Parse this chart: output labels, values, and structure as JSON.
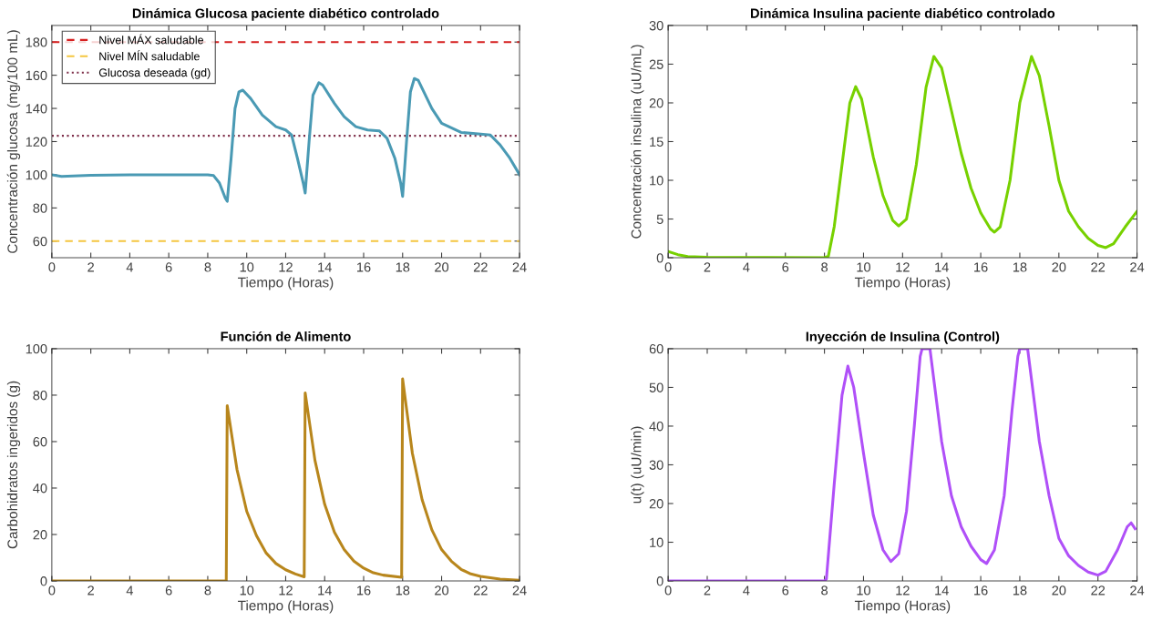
{
  "chart_data": [
    {
      "type": "line",
      "title": "Dinámica Glucosa paciente diabético controlado",
      "xlabel": "Tiempo (Horas)",
      "ylabel": "Concentración glucosa (mg/100 mL)",
      "xlim": [
        0,
        24
      ],
      "xticks": [
        0,
        2,
        4,
        6,
        8,
        10,
        12,
        14,
        16,
        18,
        20,
        22,
        24
      ],
      "ylim": [
        50,
        190
      ],
      "yticks": [
        60,
        80,
        100,
        120,
        140,
        160,
        180
      ],
      "grid": false,
      "legend": "top left",
      "x": [
        0,
        0.5,
        2,
        4,
        8,
        8.3,
        8.6,
        8.9,
        9.0,
        9.2,
        9.4,
        9.6,
        9.8,
        10.2,
        10.8,
        11.5,
        12,
        12.3,
        12.6,
        12.9,
        13.0,
        13.2,
        13.4,
        13.7,
        13.9,
        14.5,
        15,
        15.6,
        16.2,
        16.8,
        17.2,
        17.6,
        17.9,
        18.0,
        18.2,
        18.4,
        18.6,
        18.8,
        19.5,
        20,
        21,
        22,
        22.5,
        23,
        23.5,
        24
      ],
      "series": [
        {
          "color": "#4a9ab4",
          "values": [
            100,
            99,
            99.7,
            100,
            100,
            99.5,
            95,
            86,
            84,
            110,
            140,
            150,
            151,
            146,
            136,
            129,
            127,
            124,
            110,
            95,
            89,
            120,
            148,
            155.5,
            154,
            143,
            135,
            129,
            127,
            126.5,
            122,
            110,
            95,
            87,
            120,
            150,
            158,
            157,
            140,
            131,
            125.5,
            124.5,
            124,
            118,
            110,
            100
          ]
        }
      ],
      "ref_lines": [
        {
          "axis": "y",
          "value": 180,
          "label": "Nivel MÁX saludable",
          "color": "#d62020",
          "line_style": "dashed"
        },
        {
          "axis": "y",
          "value": 60,
          "label": "Nivel MÍN saludable",
          "color": "#f5c640",
          "line_style": "dashed"
        },
        {
          "axis": "y",
          "value": 123.5,
          "label": "Glucosa deseada (gd)",
          "color": "#7e2f4a",
          "line_style": "dotted"
        }
      ]
    },
    {
      "type": "line",
      "title": "Dinámica Insulina paciente diabético controlado",
      "xlabel": "Tiempo (Horas)",
      "ylabel": "Concentración insulina (uU/mL)",
      "xlim": [
        0,
        24
      ],
      "xticks": [
        0,
        2,
        4,
        6,
        8,
        10,
        12,
        14,
        16,
        18,
        20,
        22,
        24
      ],
      "ylim": [
        0,
        30
      ],
      "yticks": [
        0,
        5,
        10,
        15,
        20,
        25,
        30
      ],
      "grid": false,
      "x": [
        0,
        0.5,
        1,
        2,
        8,
        8.2,
        8.5,
        9,
        9.3,
        9.6,
        9.9,
        10.5,
        11,
        11.5,
        11.8,
        12.2,
        12.7,
        13.2,
        13.6,
        14,
        14.5,
        15,
        15.5,
        16,
        16.5,
        16.7,
        17,
        17.5,
        18,
        18.6,
        19,
        19.5,
        20,
        20.5,
        21,
        21.5,
        22,
        22.4,
        22.8,
        23.4,
        24
      ],
      "series": [
        {
          "color": "#77d100",
          "values": [
            0.8,
            0.4,
            0.15,
            0.05,
            0,
            0.2,
            4,
            14,
            20,
            22.1,
            20.5,
            13,
            8,
            4.8,
            4.1,
            5,
            12,
            22,
            26,
            24.5,
            19,
            13.5,
            9,
            5.8,
            3.7,
            3.3,
            4,
            10,
            20,
            26,
            23.5,
            17,
            10,
            6,
            4,
            2.5,
            1.6,
            1.3,
            1.8,
            4,
            6
          ]
        }
      ]
    },
    {
      "type": "line",
      "title": "Función de Alimento",
      "xlabel": "Tiempo (Horas)",
      "ylabel": "Carbohidratos ingeridos (g)",
      "xlim": [
        0,
        24
      ],
      "xticks": [
        0,
        2,
        4,
        6,
        8,
        10,
        12,
        14,
        16,
        18,
        20,
        22,
        24
      ],
      "ylim": [
        0,
        100
      ],
      "yticks": [
        0,
        20,
        40,
        60,
        80,
        100
      ],
      "grid": false,
      "x": [
        0,
        8.95,
        9.0,
        9.5,
        10,
        10.5,
        11,
        11.5,
        12,
        12.5,
        12.95,
        13.0,
        13.5,
        14,
        14.5,
        15,
        15.5,
        16,
        16.5,
        17,
        17.95,
        18.0,
        18.5,
        19,
        19.5,
        20,
        20.5,
        21,
        21.5,
        22,
        23,
        24
      ],
      "series": [
        {
          "color": "#b8861c",
          "values": [
            0,
            0,
            75.5,
            48,
            30,
            19.5,
            12,
            7.5,
            4.8,
            3,
            1.8,
            81,
            52,
            33,
            21,
            13.5,
            8.5,
            5.5,
            3.5,
            2.5,
            1.6,
            87,
            55,
            35,
            22,
            13.5,
            8.5,
            5,
            3,
            2,
            0.8,
            0.3
          ]
        }
      ]
    },
    {
      "type": "line",
      "title": "Inyección de Insulina (Control)",
      "xlabel": "Tiempo (Horas)",
      "ylabel": "u(t) (uU/min)",
      "xlim": [
        0,
        24
      ],
      "xticks": [
        0,
        2,
        4,
        6,
        8,
        10,
        12,
        14,
        16,
        18,
        20,
        22,
        24
      ],
      "ylim": [
        0,
        60
      ],
      "yticks": [
        0,
        10,
        20,
        30,
        40,
        50,
        60
      ],
      "grid": false,
      "x": [
        0,
        8,
        8.1,
        8.5,
        8.9,
        9.2,
        9.5,
        10,
        10.5,
        11,
        11.4,
        11.8,
        12.2,
        12.6,
        12.9,
        13.0,
        13.4,
        13.6,
        14,
        14.5,
        15,
        15.5,
        16,
        16.3,
        16.7,
        17.2,
        17.6,
        17.9,
        18.0,
        18.4,
        18.6,
        19,
        19.5,
        20,
        20.5,
        21,
        21.5,
        22,
        22.4,
        23,
        23.5,
        23.7,
        23.9
      ],
      "series": [
        {
          "color": "#b050f8",
          "values": [
            0,
            0,
            0.5,
            25,
            48,
            55.5,
            50,
            33,
            17,
            8,
            5,
            7,
            18,
            40,
            58,
            60,
            60,
            52,
            36,
            22,
            14,
            9,
            5.5,
            4.5,
            8,
            22,
            44,
            58,
            60,
            60,
            52,
            36,
            22,
            11,
            6.5,
            4,
            2.3,
            1.5,
            2.5,
            8,
            14,
            15,
            13.5
          ]
        }
      ]
    }
  ]
}
